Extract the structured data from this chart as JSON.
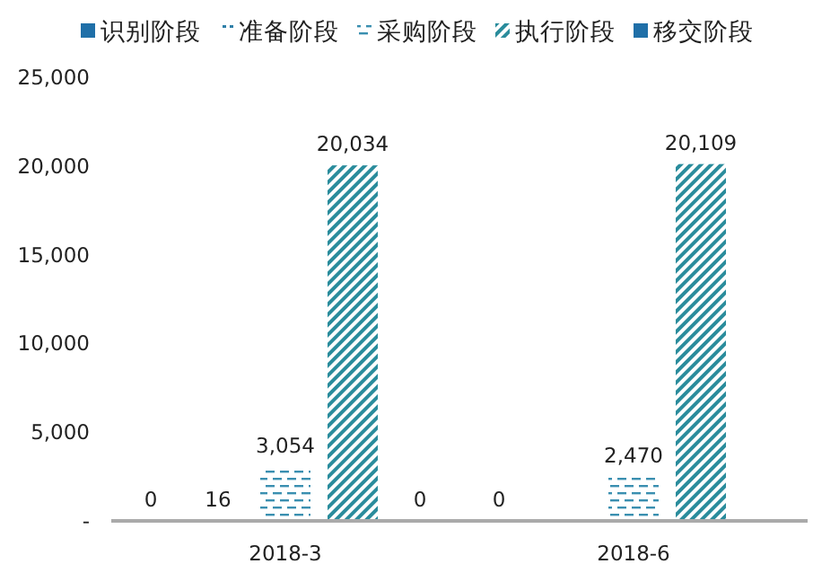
{
  "chart_data": {
    "type": "bar",
    "categories": [
      "2018-3",
      "2018-6"
    ],
    "series": [
      {
        "name": "识别阶段",
        "color": "#1f6fa8",
        "values": [
          0,
          0
        ],
        "value_labels": [
          "0",
          "0"
        ]
      },
      {
        "name": "准备阶段",
        "color": "#2f7fa8",
        "values": [
          16,
          null
        ],
        "value_labels": [
          "16",
          null
        ]
      },
      {
        "name": "采购阶段",
        "color": "#3a8fb0",
        "values": [
          3054,
          2470
        ],
        "value_labels": [
          "3,054",
          "2,470"
        ]
      },
      {
        "name": "执行阶段",
        "color": "#2a8c9c",
        "values": [
          20034,
          20109
        ],
        "value_labels": [
          "20,034",
          "20,109"
        ]
      },
      {
        "name": "移交阶段",
        "color": "#1f6fa8",
        "values": [
          0,
          null
        ],
        "value_labels": [
          "0",
          null
        ]
      }
    ],
    "ylim": [
      0,
      25000
    ],
    "yticks": [
      {
        "value": 0,
        "label": "-"
      },
      {
        "value": 5000,
        "label": "5,000"
      },
      {
        "value": 10000,
        "label": "10,000"
      },
      {
        "value": 15000,
        "label": "15,000"
      },
      {
        "value": 20000,
        "label": "20,000"
      },
      {
        "value": 25000,
        "label": "25,000"
      }
    ],
    "grid": false,
    "legend": "top"
  }
}
